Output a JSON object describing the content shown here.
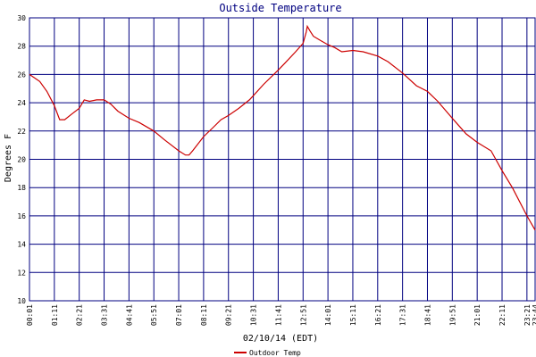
{
  "chart_data": {
    "type": "line",
    "title": "Outside Temperature",
    "xlabel": "02/10/14 (EDT)",
    "ylabel": "Degrees F",
    "ylim": [
      10,
      30
    ],
    "yticks": [
      "10",
      "12",
      "14",
      "16",
      "18",
      "20",
      "22",
      "24",
      "26",
      "28",
      "30"
    ],
    "xticks": [
      "00:01",
      "01:11",
      "02:21",
      "03:31",
      "04:41",
      "05:51",
      "07:01",
      "08:11",
      "09:21",
      "10:31",
      "11:41",
      "12:51",
      "14:01",
      "15:11",
      "16:21",
      "17:31",
      "18:41",
      "19:51",
      "21:01",
      "22:11",
      "23:21",
      "23:44"
    ],
    "grid": true,
    "legend": "bottom",
    "colors": {
      "series": "#cc0000",
      "grid": "#000080",
      "title": "#000080"
    },
    "series": [
      {
        "name": "Outdoor Temp",
        "x": [
          "00:01",
          "00:30",
          "00:50",
          "01:11",
          "01:26",
          "01:40",
          "02:00",
          "02:21",
          "02:35",
          "02:50",
          "03:10",
          "03:31",
          "03:50",
          "04:10",
          "04:41",
          "05:10",
          "05:51",
          "06:20",
          "07:01",
          "07:20",
          "07:30",
          "07:40",
          "08:11",
          "08:40",
          "09:00",
          "09:21",
          "09:50",
          "10:20",
          "10:31",
          "11:00",
          "11:41",
          "12:00",
          "12:30",
          "12:51",
          "13:00",
          "13:03",
          "13:10",
          "13:20",
          "13:40",
          "14:01",
          "14:20",
          "14:40",
          "15:11",
          "15:40",
          "16:21",
          "16:50",
          "17:31",
          "18:10",
          "18:41",
          "19:10",
          "19:51",
          "20:30",
          "21:01",
          "21:40",
          "22:11",
          "22:40",
          "23:21",
          "23:44"
        ],
        "y": [
          26.0,
          25.5,
          24.8,
          23.8,
          22.8,
          22.8,
          23.2,
          23.6,
          24.2,
          24.1,
          24.2,
          24.2,
          23.9,
          23.4,
          22.9,
          22.6,
          22.0,
          21.4,
          20.6,
          20.3,
          20.3,
          20.6,
          21.6,
          22.3,
          22.8,
          23.1,
          23.6,
          24.2,
          24.5,
          25.3,
          26.3,
          26.8,
          27.6,
          28.2,
          29.0,
          29.4,
          29.1,
          28.7,
          28.4,
          28.1,
          27.9,
          27.6,
          27.7,
          27.6,
          27.3,
          26.9,
          26.1,
          25.2,
          24.8,
          24.1,
          22.9,
          21.8,
          21.2,
          20.6,
          19.2,
          18.0,
          16.0,
          15.0
        ]
      }
    ]
  }
}
